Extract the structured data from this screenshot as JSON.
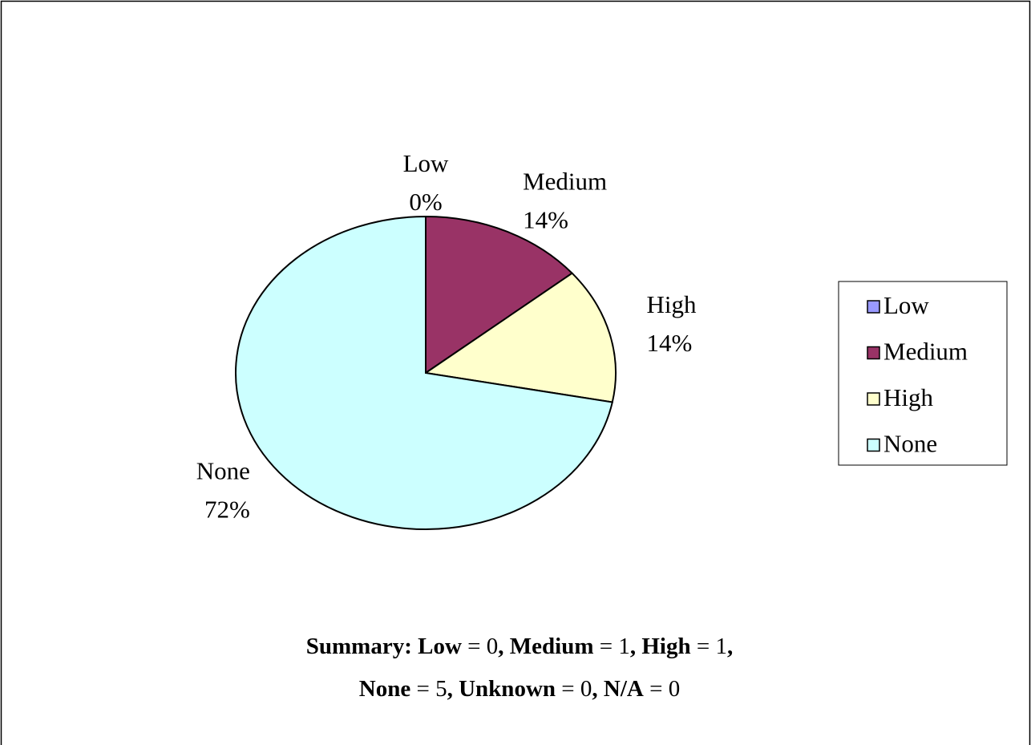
{
  "chart_data": {
    "type": "pie",
    "categories": [
      "Low",
      "Medium",
      "High",
      "None"
    ],
    "values": [
      0,
      14,
      14,
      72
    ],
    "value_labels": [
      "0%",
      "14%",
      "14%",
      "72%"
    ],
    "colors": [
      "#9999ff",
      "#993366",
      "#ffffcc",
      "#ccffff"
    ],
    "legend": "right"
  },
  "summary": {
    "title": "Summary:",
    "items": [
      {
        "label": "Low",
        "count": 0
      },
      {
        "label": "Medium",
        "count": 1
      },
      {
        "label": "High",
        "count": 1
      },
      {
        "label": "None",
        "count": 5
      },
      {
        "label": "Unknown",
        "count": 0
      },
      {
        "label": "N/A",
        "count": 0
      }
    ]
  }
}
